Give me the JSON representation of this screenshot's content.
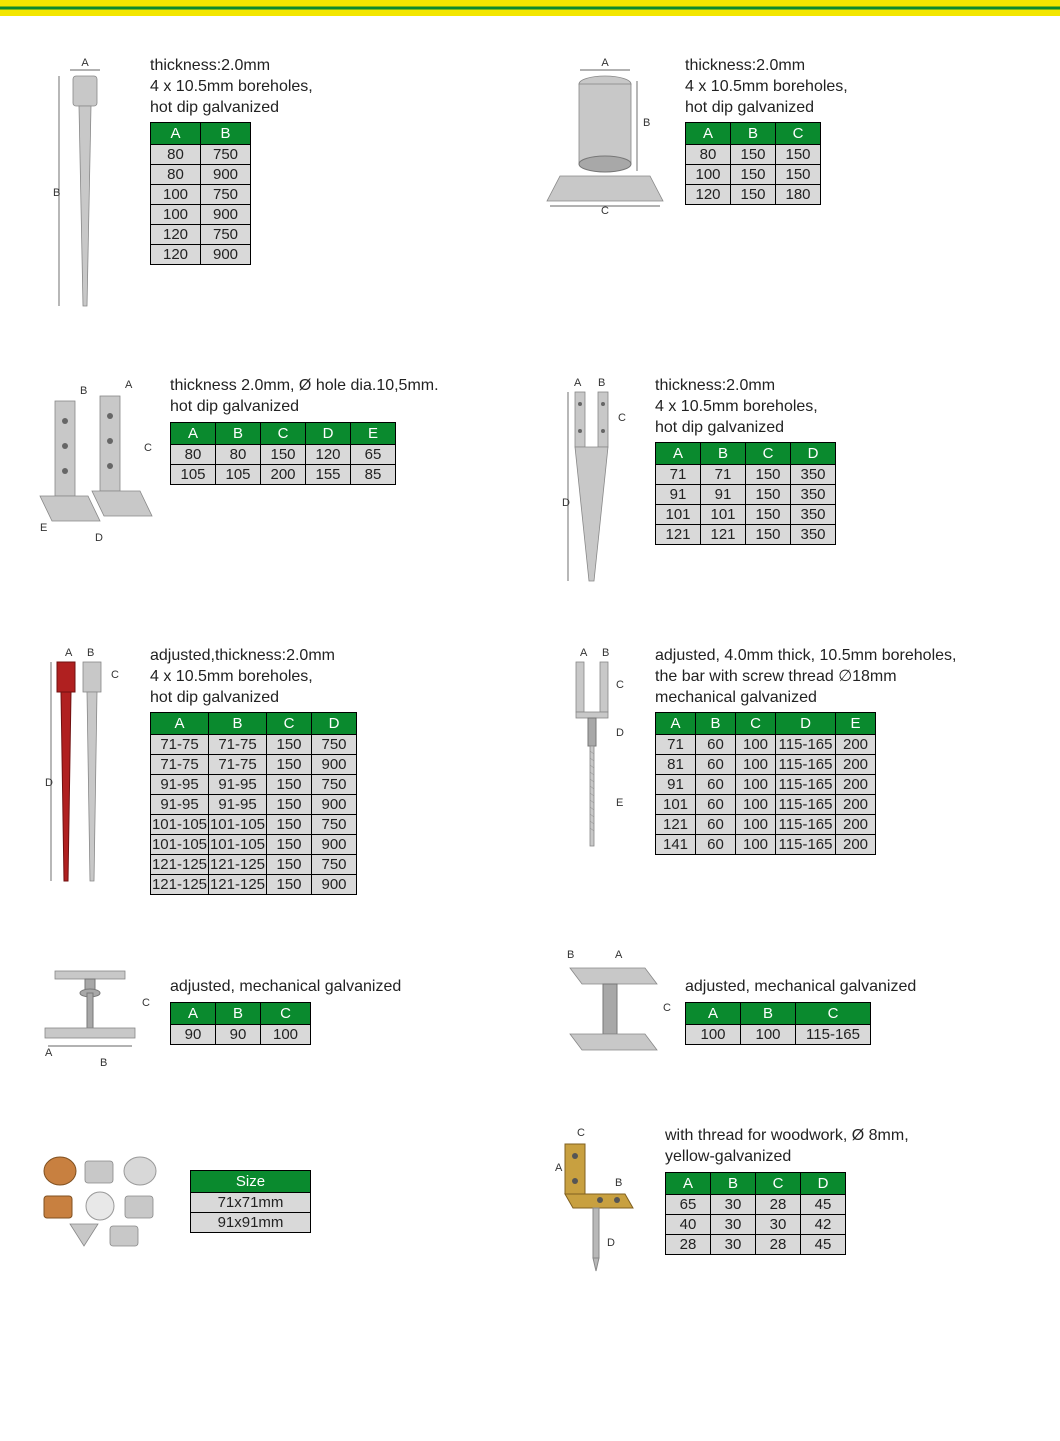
{
  "items": [
    {
      "desc": "thickness:2.0mm\n4 x 10.5mm boreholes,\nhot dip galvanized",
      "cols": [
        "A",
        "B"
      ],
      "widths": [
        50,
        50
      ],
      "rows": [
        [
          "80",
          "750"
        ],
        [
          "80",
          "900"
        ],
        [
          "100",
          "750"
        ],
        [
          "100",
          "900"
        ],
        [
          "120",
          "750"
        ],
        [
          "120",
          "900"
        ]
      ]
    },
    {
      "desc": "thickness:2.0mm\n4 x 10.5mm boreholes,\nhot dip galvanized",
      "cols": [
        "A",
        "B",
        "C"
      ],
      "widths": [
        45,
        45,
        45
      ],
      "rows": [
        [
          "80",
          "150",
          "150"
        ],
        [
          "100",
          "150",
          "150"
        ],
        [
          "120",
          "150",
          "180"
        ]
      ]
    },
    {
      "desc": "thickness 2.0mm, Ø hole dia.10,5mm.\nhot dip galvanized",
      "cols": [
        "A",
        "B",
        "C",
        "D",
        "E"
      ],
      "widths": [
        45,
        45,
        45,
        45,
        45
      ],
      "rows": [
        [
          "80",
          "80",
          "150",
          "120",
          "65"
        ],
        [
          "105",
          "105",
          "200",
          "155",
          "85"
        ]
      ]
    },
    {
      "desc": "thickness:2.0mm\n4 x 10.5mm boreholes,\nhot dip galvanized",
      "cols": [
        "A",
        "B",
        "C",
        "D"
      ],
      "widths": [
        45,
        45,
        45,
        45
      ],
      "rows": [
        [
          "71",
          "71",
          "150",
          "350"
        ],
        [
          "91",
          "91",
          "150",
          "350"
        ],
        [
          "101",
          "101",
          "150",
          "350"
        ],
        [
          "121",
          "121",
          "150",
          "350"
        ]
      ]
    },
    {
      "desc": "adjusted,thickness:2.0mm\n4 x 10.5mm boreholes,\nhot dip galvanized",
      "cols": [
        "A",
        "B",
        "C",
        "D"
      ],
      "widths": [
        58,
        58,
        45,
        45
      ],
      "rows": [
        [
          "71-75",
          "71-75",
          "150",
          "750"
        ],
        [
          "71-75",
          "71-75",
          "150",
          "900"
        ],
        [
          "91-95",
          "91-95",
          "150",
          "750"
        ],
        [
          "91-95",
          "91-95",
          "150",
          "900"
        ],
        [
          "101-105",
          "101-105",
          "150",
          "750"
        ],
        [
          "101-105",
          "101-105",
          "150",
          "900"
        ],
        [
          "121-125",
          "121-125",
          "150",
          "750"
        ],
        [
          "121-125",
          "121-125",
          "150",
          "900"
        ]
      ]
    },
    {
      "desc": "adjusted, 4.0mm thick, 10.5mm boreholes,\nthe bar with screw thread ∅18mm\nmechanical galvanized",
      "cols": [
        "A",
        "B",
        "C",
        "D",
        "E"
      ],
      "widths": [
        40,
        40,
        40,
        60,
        40
      ],
      "rows": [
        [
          "71",
          "60",
          "100",
          "115-165",
          "200"
        ],
        [
          "81",
          "60",
          "100",
          "115-165",
          "200"
        ],
        [
          "91",
          "60",
          "100",
          "115-165",
          "200"
        ],
        [
          "101",
          "60",
          "100",
          "115-165",
          "200"
        ],
        [
          "121",
          "60",
          "100",
          "115-165",
          "200"
        ],
        [
          "141",
          "60",
          "100",
          "115-165",
          "200"
        ]
      ]
    },
    {
      "desc": "adjusted, mechanical galvanized",
      "cols": [
        "A",
        "B",
        "C"
      ],
      "widths": [
        45,
        45,
        50
      ],
      "rows": [
        [
          "90",
          "90",
          "100"
        ]
      ]
    },
    {
      "desc": "adjusted, mechanical galvanized",
      "cols": [
        "A",
        "B",
        "C"
      ],
      "widths": [
        55,
        55,
        75
      ],
      "rows": [
        [
          "100",
          "100",
          "115-165"
        ]
      ]
    },
    {
      "desc": "",
      "cols": [
        "Size"
      ],
      "widths": [
        120
      ],
      "rows": [
        [
          "71x71mm"
        ],
        [
          "91x91mm"
        ]
      ]
    },
    {
      "desc": "with thread for woodwork, Ø 8mm,\nyellow-galvanized",
      "cols": [
        "A",
        "B",
        "C",
        "D"
      ],
      "widths": [
        45,
        45,
        45,
        45
      ],
      "rows": [
        [
          "65",
          "30",
          "28",
          "45"
        ],
        [
          "40",
          "30",
          "30",
          "42"
        ],
        [
          "28",
          "30",
          "28",
          "45"
        ]
      ]
    }
  ]
}
